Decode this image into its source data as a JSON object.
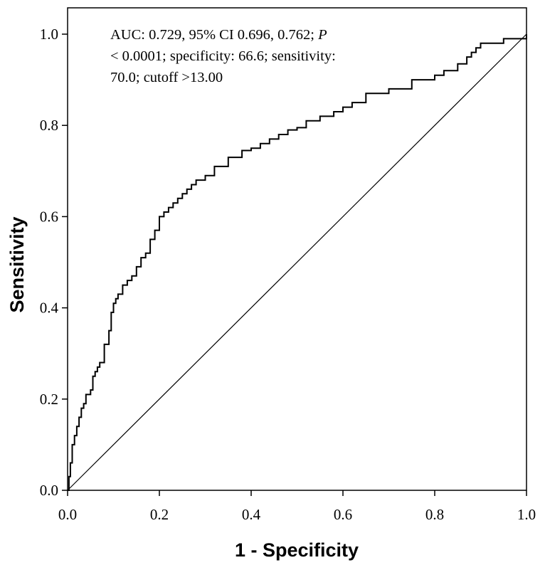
{
  "chart_data": {
    "type": "line",
    "xlabel": "1 - Specificity",
    "ylabel": "Sensitivity",
    "xlim": [
      0.0,
      1.0
    ],
    "ylim": [
      0.0,
      1.0
    ],
    "x_ticks": [
      "0.0",
      "0.2",
      "0.4",
      "0.6",
      "0.8",
      "1.0"
    ],
    "y_ticks": [
      "0.0",
      "0.2",
      "0.4",
      "0.6",
      "0.8",
      "1.0"
    ],
    "grid": false,
    "annotation": {
      "line1_prefix": "AUC: 0.729, 95% CI 0.696, 0.762; ",
      "line1_italic": "P",
      "line2": "< 0.0001; specificity: 66.6; sensitivity:",
      "line3": "70.0; cutoff >13.00"
    },
    "series": [
      {
        "x": [
          0.0,
          0.003,
          0.006,
          0.01,
          0.015,
          0.02,
          0.025,
          0.03,
          0.035,
          0.04,
          0.05,
          0.055,
          0.06,
          0.065,
          0.07,
          0.08,
          0.09,
          0.095,
          0.1,
          0.105,
          0.11,
          0.12,
          0.13,
          0.14,
          0.15,
          0.16,
          0.17,
          0.18,
          0.19,
          0.2,
          0.21,
          0.22,
          0.23,
          0.24,
          0.25,
          0.26,
          0.27,
          0.28,
          0.3,
          0.32,
          0.35,
          0.38,
          0.4,
          0.42,
          0.44,
          0.46,
          0.48,
          0.5,
          0.52,
          0.55,
          0.58,
          0.6,
          0.62,
          0.65,
          0.7,
          0.75,
          0.8,
          0.82,
          0.85,
          0.87,
          0.88,
          0.89,
          0.9,
          0.95,
          1.0
        ],
        "y": [
          0.0,
          0.03,
          0.06,
          0.1,
          0.12,
          0.14,
          0.16,
          0.18,
          0.19,
          0.21,
          0.22,
          0.25,
          0.26,
          0.27,
          0.28,
          0.32,
          0.35,
          0.39,
          0.41,
          0.42,
          0.43,
          0.45,
          0.46,
          0.47,
          0.49,
          0.51,
          0.52,
          0.55,
          0.57,
          0.6,
          0.61,
          0.62,
          0.63,
          0.64,
          0.65,
          0.66,
          0.67,
          0.68,
          0.69,
          0.71,
          0.73,
          0.745,
          0.75,
          0.76,
          0.77,
          0.78,
          0.79,
          0.795,
          0.81,
          0.82,
          0.83,
          0.84,
          0.85,
          0.87,
          0.88,
          0.9,
          0.91,
          0.92,
          0.935,
          0.95,
          0.96,
          0.97,
          0.98,
          0.99,
          1.0
        ]
      },
      {
        "x": [
          0.0,
          1.0
        ],
        "y": [
          0.0,
          1.0
        ]
      }
    ]
  }
}
